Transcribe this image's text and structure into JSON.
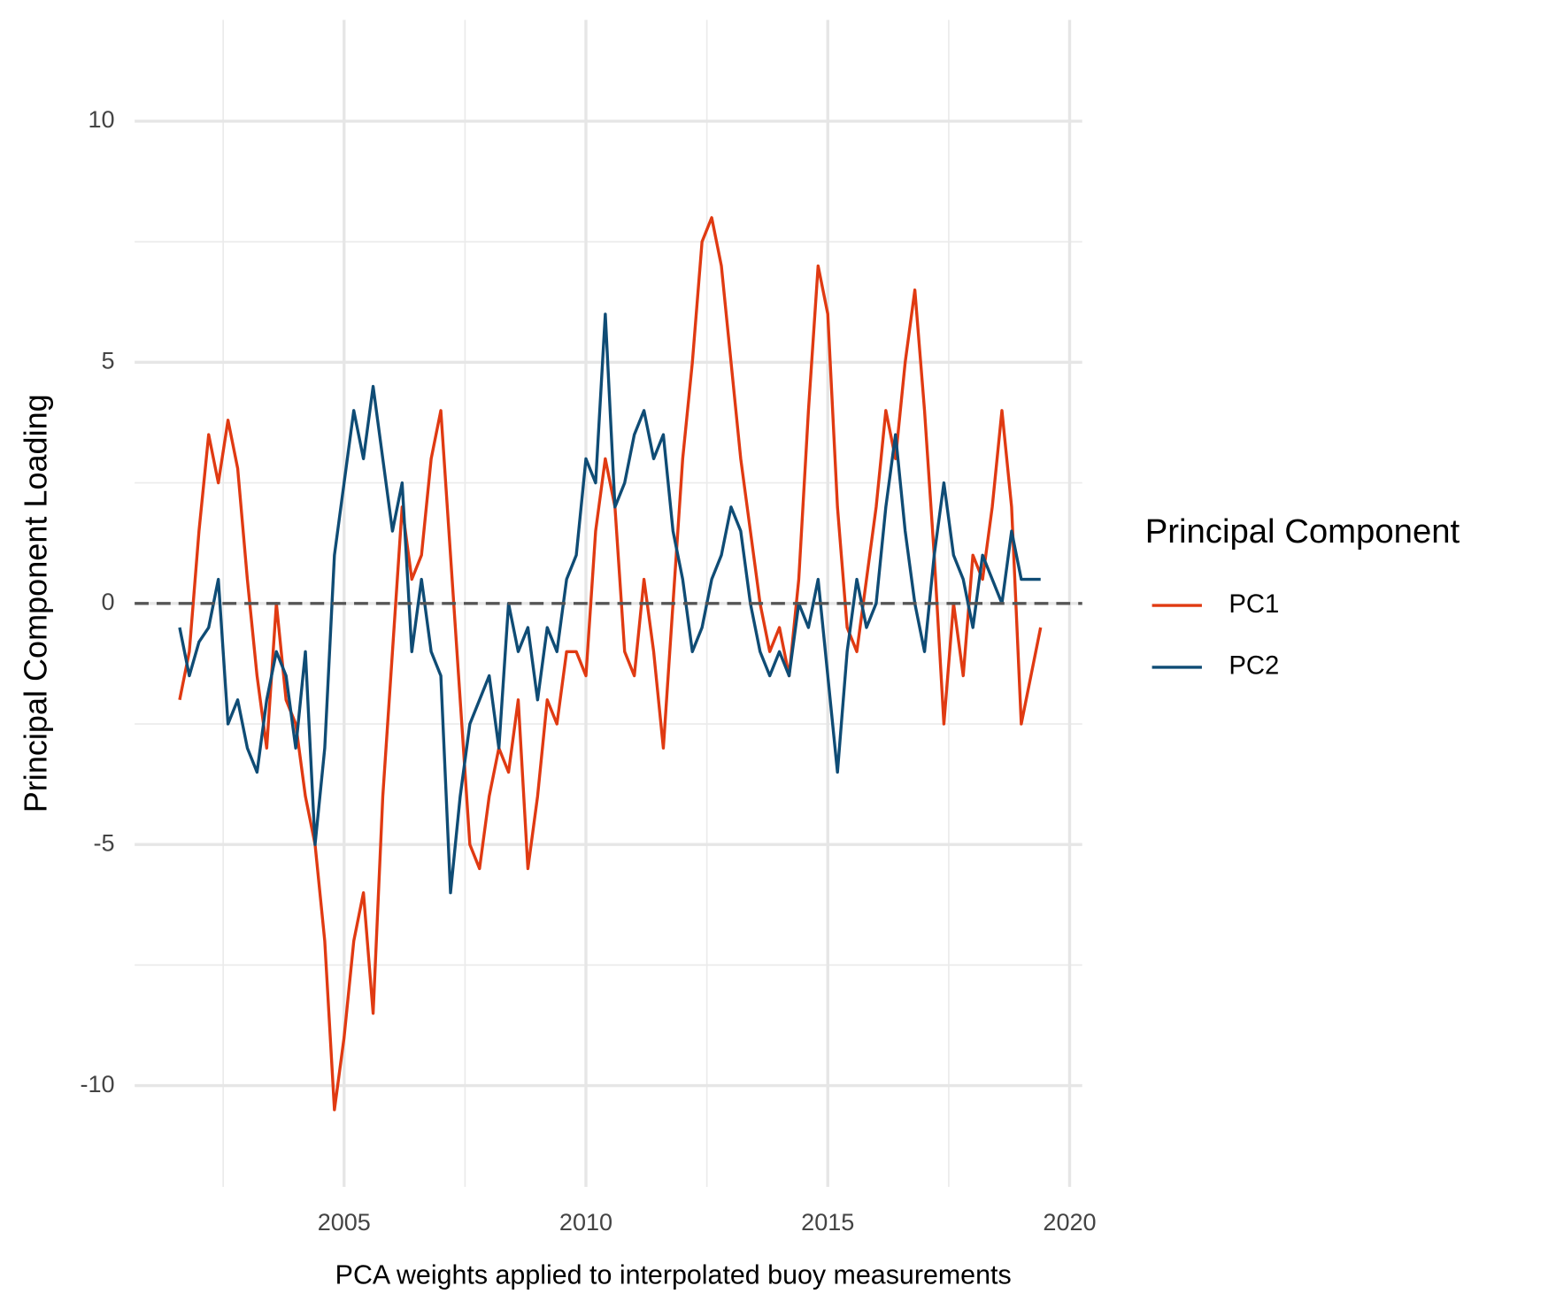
{
  "chart_data": {
    "type": "line",
    "x_label": "PCA weights applied to interpolated buoy measurements",
    "y_label": "Principal Component Loading",
    "legend_title": "Principal Component",
    "legend": "right",
    "x": [
      2001.6,
      2001.8,
      2002,
      2002.2,
      2002.4,
      2002.6,
      2002.8,
      2003,
      2003.2,
      2003.4,
      2003.6,
      2003.8,
      2004,
      2004.2,
      2004.4,
      2004.6,
      2004.8,
      2005,
      2005.2,
      2005.4,
      2005.6,
      2005.8,
      2006,
      2006.2,
      2006.4,
      2006.6,
      2006.8,
      2007,
      2007.2,
      2007.4,
      2007.6,
      2007.8,
      2008,
      2008.2,
      2008.4,
      2008.6,
      2008.8,
      2009,
      2009.2,
      2009.4,
      2009.6,
      2009.8,
      2010,
      2010.2,
      2010.4,
      2010.6,
      2010.8,
      2011,
      2011.2,
      2011.4,
      2011.6,
      2011.8,
      2012,
      2012.2,
      2012.4,
      2012.6,
      2012.8,
      2013,
      2013.2,
      2013.4,
      2013.6,
      2013.8,
      2014,
      2014.2,
      2014.4,
      2014.6,
      2014.8,
      2015,
      2015.2,
      2015.4,
      2015.6,
      2015.8,
      2016,
      2016.2,
      2016.4,
      2016.6,
      2016.8,
      2017,
      2017.2,
      2017.4,
      2017.6,
      2017.8,
      2018,
      2018.2,
      2018.4,
      2018.6,
      2018.8,
      2019,
      2019.2,
      2019.4
    ],
    "series": [
      {
        "name": "PC1",
        "color": "#e03a12",
        "values": [
          -2,
          -1,
          1.5,
          3.5,
          2.5,
          3.8,
          2.8,
          0.5,
          -1.5,
          -3,
          0,
          -2,
          -2.5,
          -4,
          -5,
          -7,
          -10.5,
          -9,
          -7,
          -6,
          -8.5,
          -4,
          -1,
          2,
          0.5,
          1,
          3,
          4,
          1,
          -2,
          -5,
          -5.5,
          -4,
          -3,
          -3.5,
          -2,
          -5.5,
          -4,
          -2,
          -2.5,
          -1,
          -1,
          -1.5,
          1.5,
          3,
          2,
          -1,
          -1.5,
          0.5,
          -1,
          -3,
          0,
          3,
          5,
          7.5,
          8,
          7,
          5,
          3,
          1.5,
          0,
          -1,
          -0.5,
          -1.5,
          0.5,
          4,
          7,
          6,
          2,
          -0.5,
          -1,
          0.5,
          2,
          4,
          3,
          5,
          6.5,
          4,
          1,
          -2.5,
          0,
          -1.5,
          1,
          0.5,
          2,
          4,
          2,
          -2.5,
          -1.5,
          -0.5
        ]
      },
      {
        "name": "PC2",
        "color": "#0f4c75",
        "values": [
          -0.5,
          -1.5,
          -0.8,
          -0.5,
          0.5,
          -2.5,
          -2,
          -3,
          -3.5,
          -2,
          -1,
          -1.5,
          -3,
          -1,
          -5,
          -3,
          1,
          2.5,
          4,
          3,
          4.5,
          3,
          1.5,
          2.5,
          -1,
          0.5,
          -1,
          -1.5,
          -6,
          -4,
          -2.5,
          -2,
          -1.5,
          -3,
          0,
          -1,
          -0.5,
          -2,
          -0.5,
          -1,
          0.5,
          1,
          3,
          2.5,
          6,
          2,
          2.5,
          3.5,
          4,
          3,
          3.5,
          1.5,
          0.5,
          -1,
          -0.5,
          0.5,
          1,
          2,
          1.5,
          0,
          -1,
          -1.5,
          -1,
          -1.5,
          0,
          -0.5,
          0.5,
          -1.5,
          -3.5,
          -1,
          0.5,
          -0.5,
          0,
          2,
          3.5,
          1.5,
          0,
          -1,
          1,
          2.5,
          1,
          0.5,
          -0.5,
          1,
          0.5,
          0,
          1.5,
          0.5,
          0.5,
          0.5
        ]
      }
    ],
    "xlim": [
      2000.67,
      2020.26
    ],
    "xticks": [
      2005,
      2010,
      2015,
      2020
    ],
    "x_minor_ticks": [
      2002.5,
      2007.5,
      2012.5,
      2017.5
    ],
    "ylim": [
      -12.1,
      12.1
    ],
    "yticks": [
      -10,
      -5,
      0,
      5,
      10
    ],
    "y_minor_ticks": [
      -7.5,
      -2.5,
      2.5,
      7.5
    ],
    "hline": 0,
    "grid": true
  }
}
